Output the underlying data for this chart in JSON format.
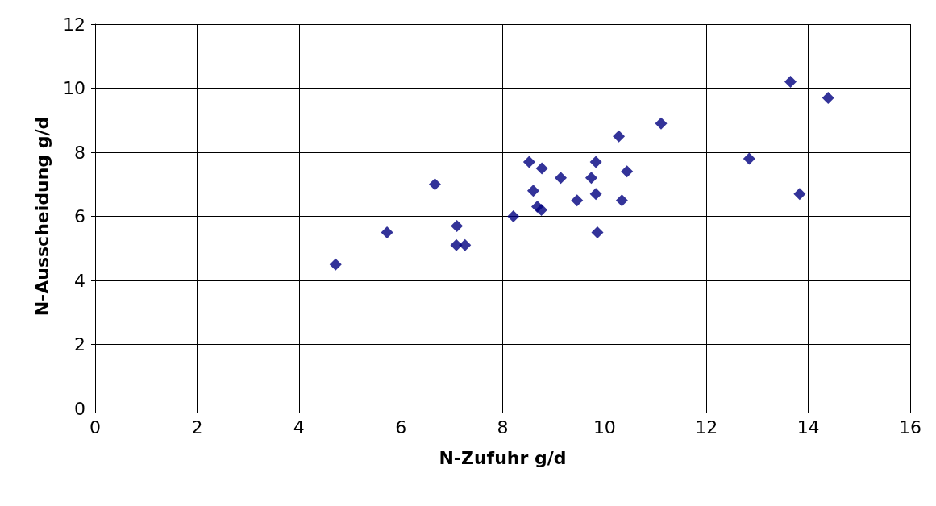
{
  "chart_data": {
    "type": "scatter",
    "xlabel": "N-Zufuhr g/d",
    "ylabel": "N-Ausscheidung g/d",
    "x": [
      4.72,
      5.73,
      6.67,
      7.1,
      7.09,
      7.26,
      8.21,
      8.52,
      8.6,
      8.77,
      8.68,
      8.76,
      9.14,
      9.46,
      9.74,
      9.83,
      9.83,
      9.86,
      10.28,
      10.34,
      10.44,
      11.11,
      12.84,
      13.65,
      13.83,
      14.39
    ],
    "values": [
      4.5,
      5.5,
      7.0,
      5.7,
      5.1,
      5.1,
      6.0,
      7.7,
      6.8,
      7.5,
      6.3,
      6.2,
      7.2,
      6.5,
      7.2,
      7.7,
      6.7,
      5.5,
      8.5,
      6.5,
      7.4,
      8.9,
      7.8,
      10.2,
      6.7,
      9.7
    ],
    "color": "#000080",
    "marker": "diamond",
    "xlim": [
      0,
      16
    ],
    "xticks": [
      0,
      2,
      4,
      6,
      8,
      10,
      12,
      14,
      16
    ],
    "ylim": [
      0,
      12
    ],
    "yticks": [
      0,
      2,
      4,
      6,
      8,
      10,
      12
    ],
    "grid": true
  }
}
